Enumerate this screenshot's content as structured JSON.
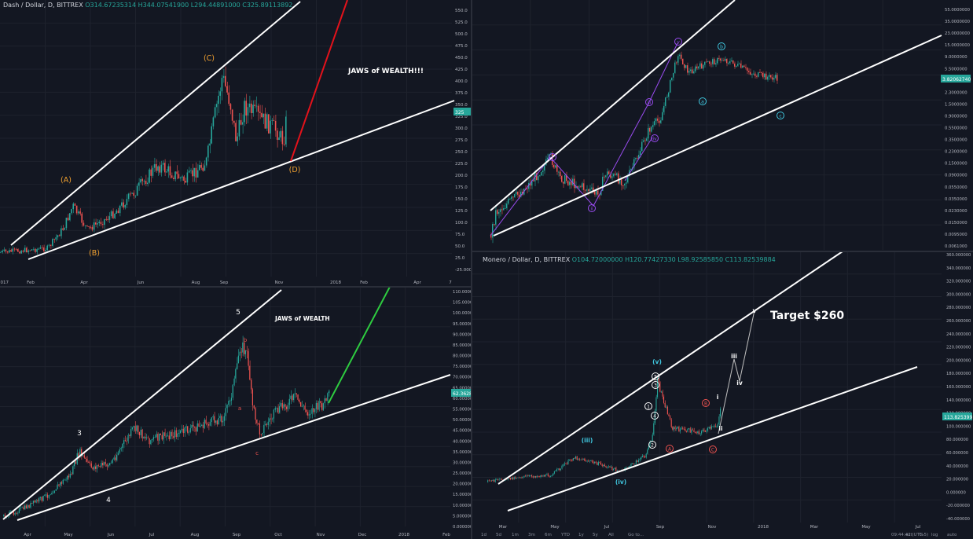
{
  "chart_data": [
    {
      "type": "line",
      "symbol": "Dash / Dollar, D, BITTREX",
      "ohlc": {
        "o": "O314.67235314",
        "h": "H344.07541900",
        "l": "L294.44891000",
        "c": "C325.89113892"
      },
      "annotation": "JAWS of WEALTH!!!",
      "wave_labels": [
        "(A)",
        "(B)",
        "(C)",
        "(D)"
      ],
      "x_ticks": [
        "2017",
        "Feb",
        "Apr",
        "Jun",
        "Aug",
        "Sep",
        "Nov",
        "2018",
        "Feb",
        "Apr",
        "7"
      ],
      "y_ticks": [
        "550.0",
        "525.0",
        "500.0",
        "475.0",
        "450.0",
        "425.0",
        "400.0",
        "375.0",
        "350.0",
        "325.0",
        "300.0",
        "275.0",
        "250.0",
        "225.0",
        "200.0",
        "175.0",
        "150.0",
        "125.0",
        "100.0",
        "75.0",
        "50.0",
        "25.0",
        "-25.0000"
      ],
      "last_price": "325",
      "ylim": [
        -25,
        560
      ]
    },
    {
      "type": "line",
      "scale": "log",
      "wave_labels": [
        "i",
        "ii",
        "iii",
        "iv",
        "v",
        "a",
        "b",
        "c"
      ],
      "y_ticks": [
        "55.0000000",
        "35.0000000",
        "23.0000000",
        "15.0000000",
        "9.0000000",
        "5.5000000",
        "3.5000000",
        "2.3000000",
        "1.5000000",
        "0.9000000",
        "0.5500000",
        "0.3500000",
        "0.2300000",
        "0.1500000",
        "0.0900000",
        "0.0550000",
        "0.0350000",
        "0.0230000",
        "0.0150000",
        "0.0095000",
        "0.0061000"
      ],
      "last_price": "3.82062740"
    },
    {
      "type": "line",
      "annotation": "JAWS of WEALTH",
      "wave_labels": [
        "3",
        "4",
        "5",
        "a",
        "b",
        "c"
      ],
      "x_ticks": [
        "Apr",
        "May",
        "Jun",
        "Jul",
        "Aug",
        "Sep",
        "Oct",
        "Nov",
        "Dec",
        "2018",
        "Feb"
      ],
      "y_ticks": [
        "110.000000",
        "105.000000",
        "100.000000",
        "95.000000",
        "90.000000",
        "85.000000",
        "80.000000",
        "75.000000",
        "70.000000",
        "65.000000",
        "60.000000",
        "55.000000",
        "50.000000",
        "45.000000",
        "40.000000",
        "35.000000",
        "30.000000",
        "25.000000",
        "20.000000",
        "15.000000",
        "10.000000",
        "5.000000",
        "0.000000"
      ],
      "last_price": "62.362867",
      "ylim": [
        0,
        112
      ]
    },
    {
      "type": "line",
      "symbol": "Monero / Dollar, D, BITTREX",
      "ohlc": {
        "o": "O104.72000000",
        "h": "H120.77427330",
        "l": "L98.92585850",
        "c": "C113.82539884"
      },
      "annotation": "Target $260",
      "wave_labels": [
        "(iii)",
        "(iv)",
        "(v)",
        "i",
        "ii",
        "iii",
        "iv",
        "v",
        "A",
        "B",
        "C",
        "1",
        "2",
        "3",
        "4",
        "5"
      ],
      "x_ticks": [
        "Mar",
        "May",
        "Jul",
        "Sep",
        "Nov",
        "2018",
        "Mar",
        "May",
        "Jul"
      ],
      "y_ticks": [
        "360.000000",
        "340.000000",
        "320.000000",
        "300.000000",
        "280.000000",
        "260.000000",
        "240.000000",
        "220.000000",
        "200.000000",
        "180.000000",
        "160.000000",
        "140.000000",
        "120.000000",
        "100.000000",
        "80.000000",
        "60.000000",
        "40.000000",
        "20.000000",
        "0.000000",
        "-20.000000",
        "-40.000000"
      ],
      "last_price": "113.825399",
      "ylim": [
        -45,
        365
      ],
      "toolbar": [
        "1d",
        "5d",
        "1m",
        "3m",
        "6m",
        "YTD",
        "1y",
        "5y",
        "All",
        "Go to...",
        "09:44:42 (UTC-5)",
        "ext",
        "%",
        "log",
        "auto"
      ]
    }
  ],
  "colors": {
    "bg": "#131722",
    "up": "#26a69a",
    "down": "#ef5350",
    "line": "#ffffff",
    "red_line": "#e3121b",
    "green_line": "#2ecc40",
    "wave_orange": "#f0a030",
    "wave_purple": "#9a4cf0",
    "wave_cyan": "#40c8e0"
  }
}
